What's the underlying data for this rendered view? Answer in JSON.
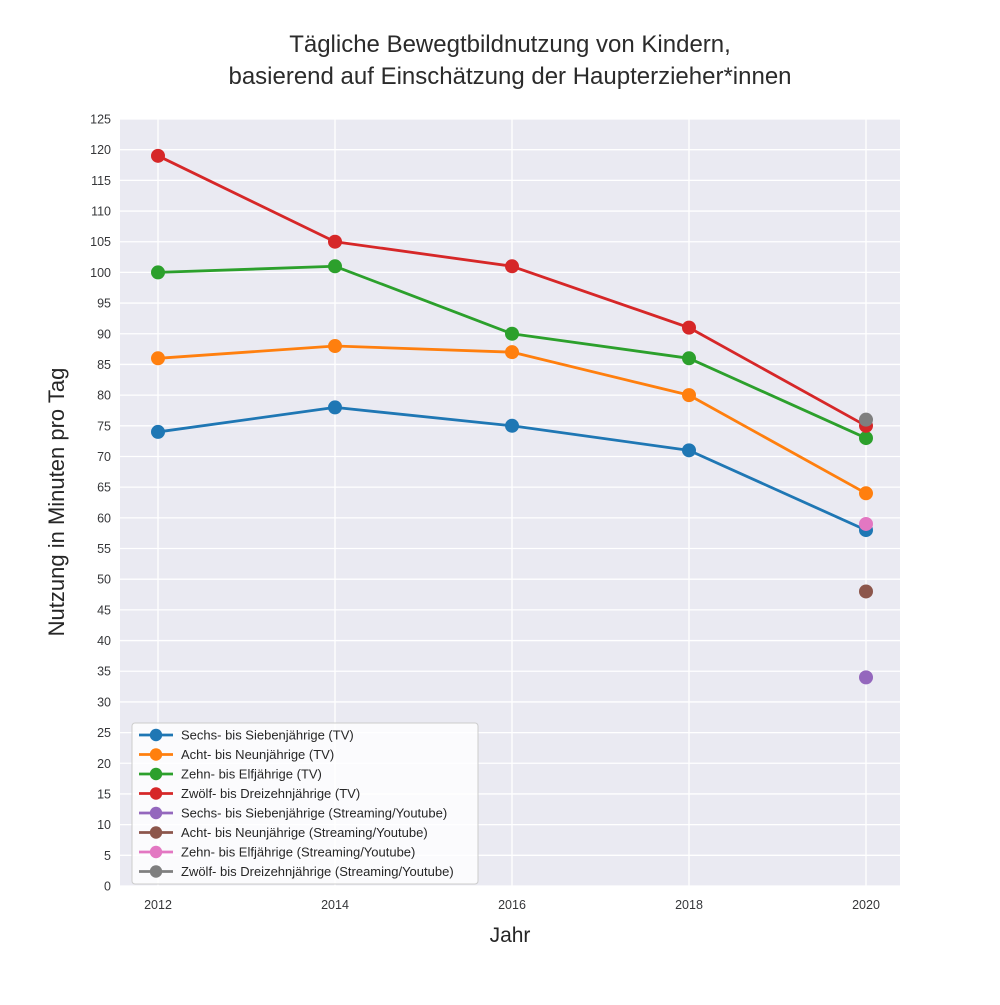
{
  "title": {
    "line1": "Tägliche Bewegtbildnutzung von Kindern,",
    "line2": "basierend auf Einschätzung der Haupterzieher*innen"
  },
  "chart_data": {
    "type": "line",
    "title": "Tägliche Bewegtbildnutzung von Kindern, basierend auf Einschätzung der Haupterzieher*innen",
    "xlabel": "Jahr",
    "ylabel": "Nutzung in Minuten pro Tag",
    "xticks": [
      2012,
      2014,
      2016,
      2018,
      2020
    ],
    "ylim": [
      0,
      125
    ],
    "ytick_step": 5,
    "xlim": [
      2011.57,
      2020.39
    ],
    "grid": true,
    "legend_position": "lower left",
    "plot_background": "#eaeaf2",
    "grid_color": "#ffffff",
    "text_color": "#262626",
    "series": [
      {
        "name": "Sechs- bis Siebenjährige (TV)",
        "color": "#1f77b4",
        "x": [
          2012,
          2014,
          2016,
          2018,
          2020
        ],
        "values": [
          74,
          78,
          75,
          71,
          58
        ]
      },
      {
        "name": "Acht- bis Neunjährige (TV)",
        "color": "#ff7f0e",
        "x": [
          2012,
          2014,
          2016,
          2018,
          2020
        ],
        "values": [
          86,
          88,
          87,
          80,
          64
        ]
      },
      {
        "name": "Zehn- bis Elfjährige (TV)",
        "color": "#2ca02c",
        "x": [
          2012,
          2014,
          2016,
          2018,
          2020
        ],
        "values": [
          100,
          101,
          90,
          86,
          73
        ]
      },
      {
        "name": "Zwölf- bis Dreizehnjährige (TV)",
        "color": "#d62728",
        "x": [
          2012,
          2014,
          2016,
          2018,
          2020
        ],
        "values": [
          119,
          105,
          101,
          91,
          75
        ]
      },
      {
        "name": "Sechs- bis Siebenjährige (Streaming/Youtube)",
        "color": "#9467bd",
        "x": [
          2020
        ],
        "values": [
          34
        ]
      },
      {
        "name": "Acht- bis Neunjährige (Streaming/Youtube)",
        "color": "#8c564b",
        "x": [
          2020
        ],
        "values": [
          48
        ]
      },
      {
        "name": "Zehn- bis Elfjährige (Streaming/Youtube)",
        "color": "#e377c2",
        "x": [
          2020
        ],
        "values": [
          59
        ]
      },
      {
        "name": "Zwölf- bis Dreizehnjährige (Streaming/Youtube)",
        "color": "#7f7f7f",
        "x": [
          2020
        ],
        "values": [
          76
        ]
      }
    ]
  }
}
